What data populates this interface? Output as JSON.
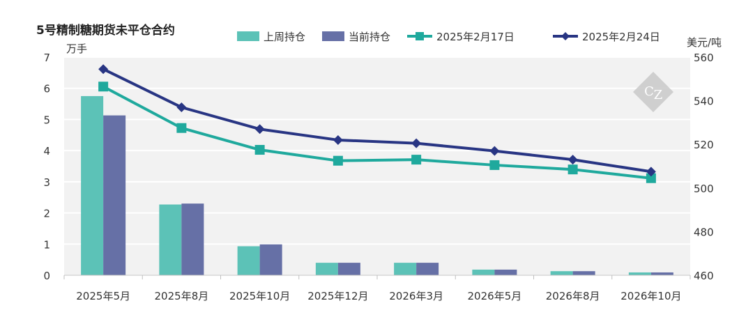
{
  "chart_data": {
    "type": "bar+line",
    "title": "5号精制糖期货未平仓合约",
    "left_unit": "万手",
    "right_unit": "美元/吨",
    "categories": [
      "2025年5月",
      "2025年8月",
      "2025年10月",
      "2025年12月",
      "2026年3月",
      "2026年5月",
      "2026年8月",
      "2026年10月"
    ],
    "left_axis": {
      "min": 0,
      "max": 7,
      "ticks": [
        "0",
        "1",
        "2",
        "3",
        "4",
        "5",
        "6",
        "7"
      ]
    },
    "right_axis": {
      "min": 460,
      "max": 560,
      "ticks": [
        "460",
        "480",
        "500",
        "520",
        "540",
        "560"
      ]
    },
    "bar_series": [
      {
        "name": "上周持仓",
        "color": "#5cc2b7",
        "values": [
          5.75,
          2.27,
          0.93,
          0.4,
          0.4,
          0.18,
          0.13,
          0.09
        ]
      },
      {
        "name": "当前持仓",
        "color": "#6670a6",
        "values": [
          5.13,
          2.3,
          0.99,
          0.4,
          0.4,
          0.18,
          0.13,
          0.09
        ]
      }
    ],
    "line_series": [
      {
        "name": "2025年2月17日",
        "color": "#1fa99d",
        "marker": "square",
        "values": [
          546.5,
          527.5,
          517.5,
          512.5,
          513,
          510.5,
          508.5,
          504.5
        ]
      },
      {
        "name": "2025年2月24日",
        "color": "#283583",
        "marker": "diamond",
        "values": [
          554.5,
          537,
          527,
          522,
          520.5,
          517,
          513,
          507.5
        ]
      }
    ],
    "grid": "horizontal",
    "legend_position": "top"
  }
}
